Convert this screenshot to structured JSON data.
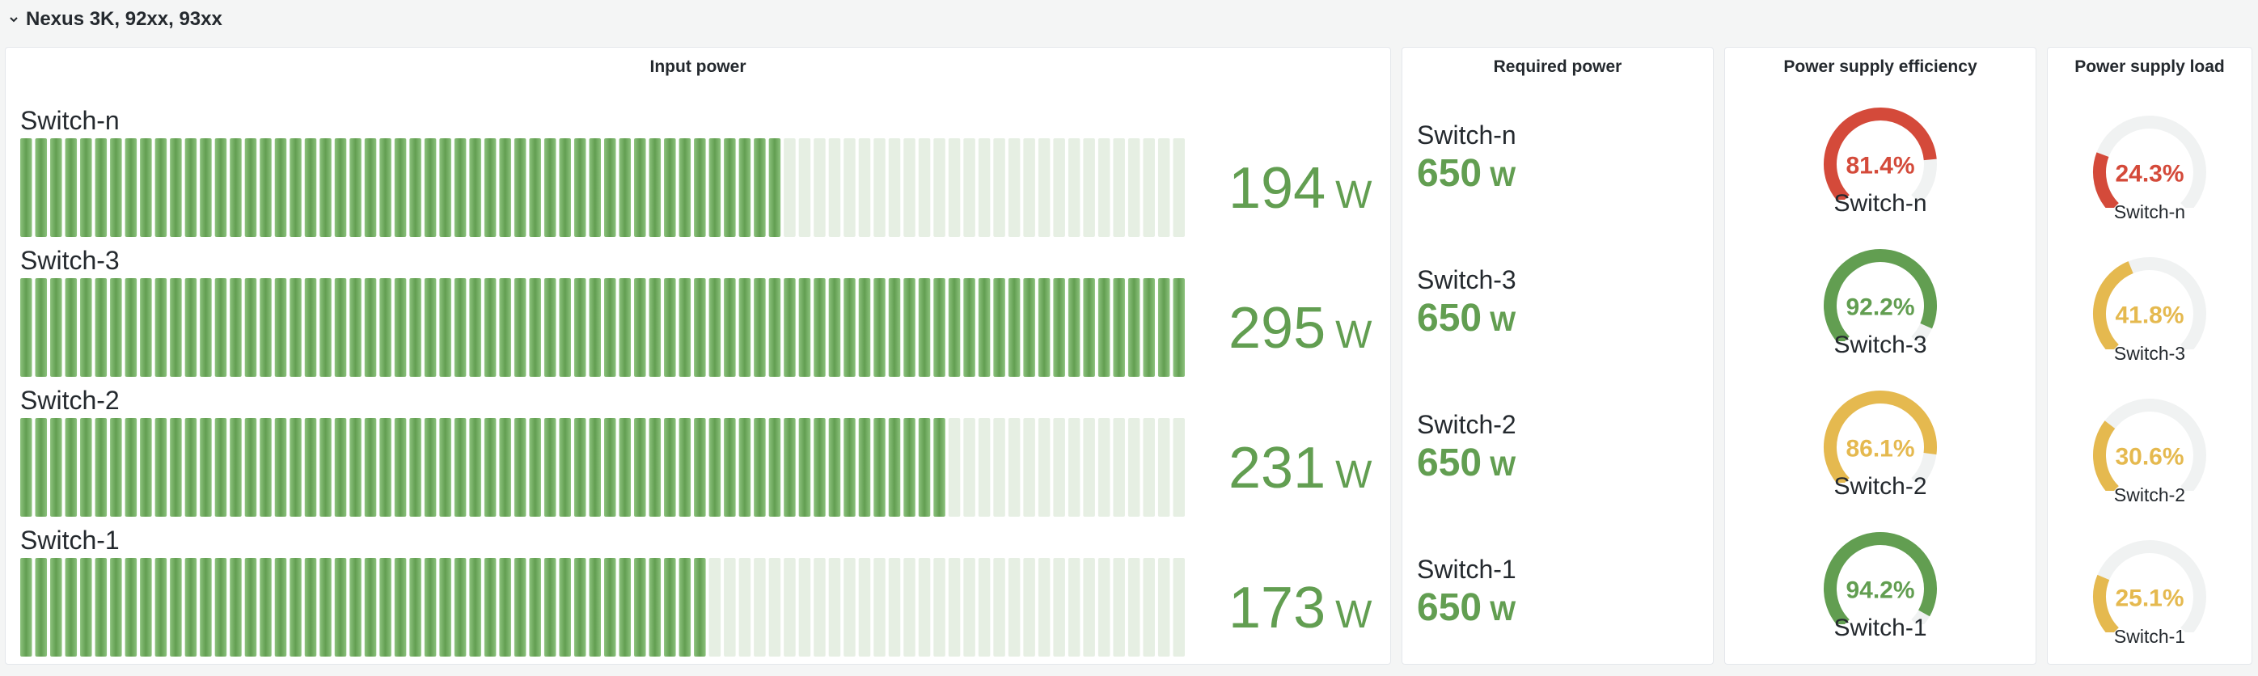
{
  "row": {
    "title": "Nexus 3K, 92xx, 93xx"
  },
  "colors": {
    "green": "#629e51",
    "yellow": "#e5b94f",
    "red": "#d44a3a",
    "track": "#f0f2f2",
    "bar_empty": "#e6efe3"
  },
  "input_power": {
    "title": "Input power",
    "total_cells": 78,
    "rows": [
      {
        "name": "Switch-n",
        "value": "194",
        "unit": "W",
        "fraction": 0.66
      },
      {
        "name": "Switch-3",
        "value": "295",
        "unit": "W",
        "fraction": 1.0
      },
      {
        "name": "Switch-2",
        "value": "231",
        "unit": "W",
        "fraction": 0.79
      },
      {
        "name": "Switch-1",
        "value": "173",
        "unit": "W",
        "fraction": 0.59
      }
    ]
  },
  "required_power": {
    "title": "Required power",
    "items": [
      {
        "name": "Switch-n",
        "value": "650",
        "unit": "W"
      },
      {
        "name": "Switch-3",
        "value": "650",
        "unit": "W"
      },
      {
        "name": "Switch-2",
        "value": "650",
        "unit": "W"
      },
      {
        "name": "Switch-1",
        "value": "650",
        "unit": "W"
      }
    ]
  },
  "psu_efficiency": {
    "title": "Power supply efficiency",
    "items": [
      {
        "name": "Switch-n",
        "display": "81.4%",
        "fraction": 0.814,
        "color": "#d44a3a"
      },
      {
        "name": "Switch-3",
        "display": "92.2%",
        "fraction": 0.922,
        "color": "#629e51"
      },
      {
        "name": "Switch-2",
        "display": "86.1%",
        "fraction": 0.861,
        "color": "#e5b94f"
      },
      {
        "name": "Switch-1",
        "display": "94.2%",
        "fraction": 0.942,
        "color": "#629e51"
      }
    ]
  },
  "psu_load": {
    "title": "Power supply load",
    "items": [
      {
        "name": "Switch-n",
        "display": "24.3%",
        "fraction": 0.243,
        "color": "#d44a3a"
      },
      {
        "name": "Switch-3",
        "display": "41.8%",
        "fraction": 0.418,
        "color": "#e5b94f"
      },
      {
        "name": "Switch-2",
        "display": "30.6%",
        "fraction": 0.306,
        "color": "#e5b94f"
      },
      {
        "name": "Switch-1",
        "display": "25.1%",
        "fraction": 0.251,
        "color": "#e5b94f"
      }
    ]
  }
}
